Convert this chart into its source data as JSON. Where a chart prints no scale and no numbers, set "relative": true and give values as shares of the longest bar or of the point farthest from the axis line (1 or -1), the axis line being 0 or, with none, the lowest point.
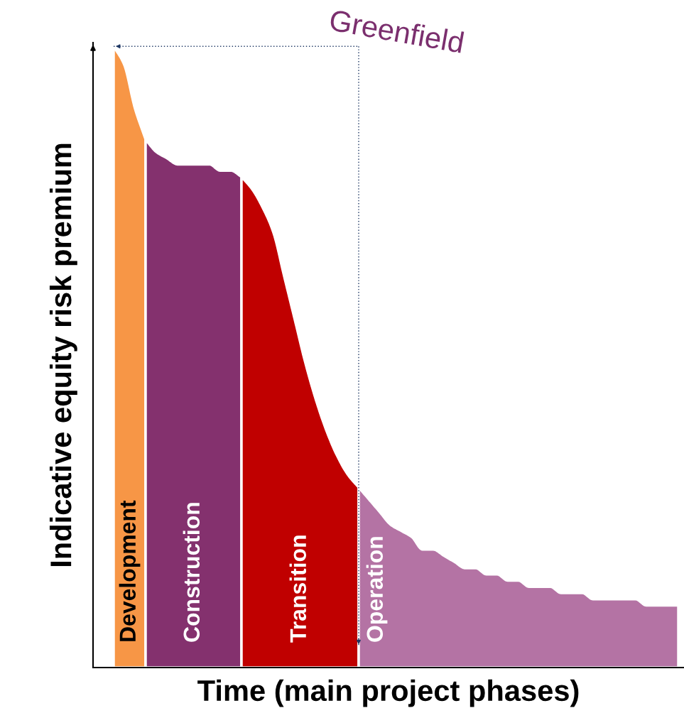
{
  "chart_data": {
    "type": "area",
    "relative": true,
    "xlabel": "Time (main project phases)",
    "ylabel": "Indicative equity risk premium",
    "annotations": [
      "Greenfield"
    ],
    "categories": [
      null,
      null,
      null,
      null,
      null,
      null,
      null,
      null,
      null,
      null,
      null,
      null,
      null,
      null,
      null,
      null,
      null,
      null,
      null,
      null,
      null,
      null,
      null,
      null,
      null,
      null,
      null,
      null,
      null,
      null,
      null,
      null,
      null,
      null,
      null,
      null,
      null,
      null,
      null,
      null,
      null,
      null,
      null,
      null,
      null,
      null,
      null,
      null,
      null,
      null,
      null,
      null,
      null,
      null
    ],
    "series": [
      {
        "name": "Development",
        "color": "#f79646",
        "values": [
          1.0,
          0.97,
          0.9,
          0.85,
          null,
          null,
          null,
          null,
          null,
          null,
          null,
          null,
          null,
          null,
          null,
          null,
          null,
          null,
          null,
          null,
          null,
          null,
          null,
          null,
          null,
          null,
          null,
          null,
          null,
          null,
          null,
          null,
          null,
          null,
          null,
          null,
          null,
          null,
          null,
          null,
          null,
          null,
          null,
          null,
          null,
          null,
          null,
          null,
          null,
          null,
          null,
          null,
          null,
          null
        ]
      },
      {
        "name": "Construction",
        "color": "#84316e",
        "values": [
          null,
          null,
          null,
          0.85,
          0.83,
          0.82,
          0.81,
          0.81,
          0.81,
          0.81,
          0.8,
          0.8,
          0.79,
          null,
          null,
          null,
          null,
          null,
          null,
          null,
          null,
          null,
          null,
          null,
          null,
          null,
          null,
          null,
          null,
          null,
          null,
          null,
          null,
          null,
          null,
          null,
          null,
          null,
          null,
          null,
          null,
          null,
          null,
          null,
          null,
          null,
          null,
          null,
          null,
          null,
          null,
          null,
          null,
          null
        ]
      },
      {
        "name": "Transition",
        "color": "#c00000",
        "values": [
          null,
          null,
          null,
          null,
          null,
          null,
          null,
          null,
          null,
          null,
          null,
          null,
          0.79,
          0.77,
          0.74,
          0.7,
          0.63,
          0.56,
          0.49,
          0.43,
          0.38,
          0.34,
          0.31,
          0.29,
          null,
          null,
          null,
          null,
          null,
          null,
          null,
          null,
          null,
          null,
          null,
          null,
          null,
          null,
          null,
          null,
          null,
          null,
          null,
          null,
          null,
          null,
          null,
          null,
          null,
          null,
          null,
          null,
          null,
          null
        ]
      },
      {
        "name": "Operation",
        "color": "#b473a4",
        "values": [
          null,
          null,
          null,
          null,
          null,
          null,
          null,
          null,
          null,
          null,
          null,
          null,
          null,
          null,
          null,
          null,
          null,
          null,
          null,
          null,
          null,
          null,
          null,
          0.29,
          0.27,
          0.25,
          0.23,
          0.22,
          0.21,
          0.19,
          0.19,
          0.18,
          0.17,
          0.16,
          0.16,
          0.15,
          0.15,
          0.14,
          0.14,
          0.13,
          0.13,
          0.13,
          0.12,
          0.12,
          0.12,
          0.11,
          0.11,
          0.11,
          0.11,
          0.11,
          0.1,
          0.1,
          0.1,
          0.1
        ]
      }
    ]
  }
}
